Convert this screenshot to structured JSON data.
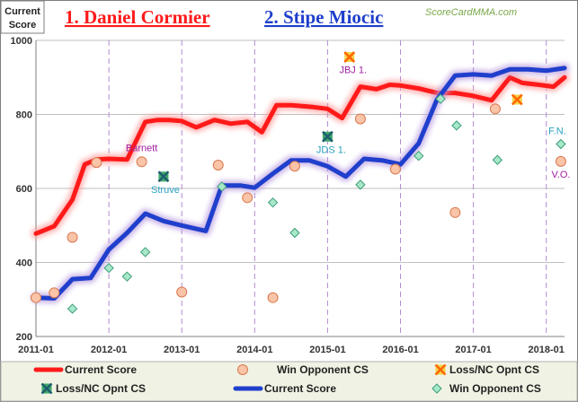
{
  "chart_data": {
    "type": "line",
    "y_corner_label": [
      "Current",
      "Score"
    ],
    "watermark": "ScoreCardMMA.com",
    "fighters": [
      {
        "title": "1. Daniel Cormier",
        "color": "#ff1a1a"
      },
      {
        "title": "2. Stipe Miocic",
        "color": "#1f3fcc"
      }
    ],
    "x_tick_labels": [
      "2011-01",
      "2012-01",
      "2013-01",
      "2014-01",
      "2015-01",
      "2016-01",
      "2017-01",
      "2018-01"
    ],
    "x_range": [
      2011.0,
      2018.25
    ],
    "ylim": [
      200,
      1000
    ],
    "y_ticks": [
      200,
      400,
      600,
      800,
      1000
    ],
    "grid": true,
    "series": [
      {
        "fighter": "1. Daniel Cormier",
        "color": "#ff1a1a",
        "x": [
          2011.0,
          2011.25,
          2011.5,
          2011.67,
          2011.83,
          2012.0,
          2012.25,
          2012.5,
          2012.67,
          2012.83,
          2013.0,
          2013.2,
          2013.45,
          2013.67,
          2013.9,
          2014.1,
          2014.3,
          2014.5,
          2014.8,
          2015.0,
          2015.2,
          2015.45,
          2015.67,
          2015.85,
          2016.0,
          2016.25,
          2016.5,
          2016.75,
          2017.0,
          2017.25,
          2017.5,
          2017.67,
          2017.9,
          2018.1,
          2018.25
        ],
        "y": [
          478,
          498,
          570,
          665,
          678,
          680,
          678,
          780,
          785,
          785,
          782,
          765,
          785,
          775,
          780,
          752,
          825,
          825,
          820,
          815,
          790,
          875,
          868,
          880,
          878,
          870,
          858,
          858,
          850,
          838,
          900,
          885,
          880,
          875,
          900
        ]
      },
      {
        "fighter": "2. Stipe Miocic",
        "color": "#1f3fcc",
        "x": [
          2011.0,
          2011.25,
          2011.5,
          2011.75,
          2012.0,
          2012.25,
          2012.5,
          2012.75,
          2013.0,
          2013.33,
          2013.55,
          2013.8,
          2014.0,
          2014.25,
          2014.5,
          2014.75,
          2015.0,
          2015.25,
          2015.5,
          2015.75,
          2016.0,
          2016.25,
          2016.5,
          2016.75,
          2017.0,
          2017.25,
          2017.5,
          2017.75,
          2018.0,
          2018.25
        ],
        "y": [
          305,
          303,
          355,
          358,
          435,
          480,
          532,
          512,
          500,
          485,
          608,
          608,
          602,
          640,
          676,
          676,
          660,
          632,
          680,
          676,
          665,
          722,
          840,
          905,
          908,
          905,
          922,
          922,
          918,
          925
        ]
      }
    ],
    "opponent_points": [
      {
        "fighter": "1. Daniel Cormier",
        "kind": "win",
        "x": 2011.0,
        "y": 305
      },
      {
        "fighter": "1. Daniel Cormier",
        "kind": "win",
        "x": 2011.25,
        "y": 318
      },
      {
        "fighter": "1. Daniel Cormier",
        "kind": "win",
        "x": 2011.5,
        "y": 468
      },
      {
        "fighter": "1. Daniel Cormier",
        "kind": "win",
        "x": 2011.83,
        "y": 670
      },
      {
        "fighter": "1. Daniel Cormier",
        "kind": "win",
        "x": 2012.45,
        "y": 672,
        "label": "Barnett"
      },
      {
        "fighter": "1. Daniel Cormier",
        "kind": "win",
        "x": 2013.0,
        "y": 320
      },
      {
        "fighter": "1. Daniel Cormier",
        "kind": "win",
        "x": 2013.5,
        "y": 663
      },
      {
        "fighter": "1. Daniel Cormier",
        "kind": "win",
        "x": 2013.9,
        "y": 575
      },
      {
        "fighter": "1. Daniel Cormier",
        "kind": "win",
        "x": 2014.25,
        "y": 305
      },
      {
        "fighter": "1. Daniel Cormier",
        "kind": "win",
        "x": 2014.55,
        "y": 660
      },
      {
        "fighter": "1. Daniel Cormier",
        "kind": "win",
        "x": 2015.45,
        "y": 788
      },
      {
        "fighter": "1. Daniel Cormier",
        "kind": "win",
        "x": 2015.93,
        "y": 652
      },
      {
        "fighter": "1. Daniel Cormier",
        "kind": "win",
        "x": 2016.75,
        "y": 535
      },
      {
        "fighter": "1. Daniel Cormier",
        "kind": "win",
        "x": 2017.3,
        "y": 815
      },
      {
        "fighter": "1. Daniel Cormier",
        "kind": "win",
        "x": 2018.2,
        "y": 673,
        "label": "V.O."
      },
      {
        "fighter": "1. Daniel Cormier",
        "kind": "loss",
        "x": 2015.3,
        "y": 955,
        "label": "JBJ 1."
      },
      {
        "fighter": "1. Daniel Cormier",
        "kind": "loss",
        "x": 2017.6,
        "y": 840
      },
      {
        "fighter": "2. Stipe Miocic",
        "kind": "loss",
        "x": 2012.75,
        "y": 632,
        "label": "Struve"
      },
      {
        "fighter": "2. Stipe Miocic",
        "kind": "loss",
        "x": 2015.0,
        "y": 740,
        "label": "JDS 1."
      },
      {
        "fighter": "2. Stipe Miocic",
        "kind": "win",
        "x": 2011.5,
        "y": 275
      },
      {
        "fighter": "2. Stipe Miocic",
        "kind": "win",
        "x": 2012.0,
        "y": 385
      },
      {
        "fighter": "2. Stipe Miocic",
        "kind": "win",
        "x": 2012.25,
        "y": 362
      },
      {
        "fighter": "2. Stipe Miocic",
        "kind": "win",
        "x": 2012.5,
        "y": 428
      },
      {
        "fighter": "2. Stipe Miocic",
        "kind": "win",
        "x": 2013.55,
        "y": 605
      },
      {
        "fighter": "2. Stipe Miocic",
        "kind": "win",
        "x": 2014.25,
        "y": 562
      },
      {
        "fighter": "2. Stipe Miocic",
        "kind": "win",
        "x": 2014.55,
        "y": 480
      },
      {
        "fighter": "2. Stipe Miocic",
        "kind": "win",
        "x": 2015.45,
        "y": 610
      },
      {
        "fighter": "2. Stipe Miocic",
        "kind": "win",
        "x": 2016.25,
        "y": 688
      },
      {
        "fighter": "2. Stipe Miocic",
        "kind": "win",
        "x": 2016.55,
        "y": 842
      },
      {
        "fighter": "2. Stipe Miocic",
        "kind": "win",
        "x": 2016.77,
        "y": 770
      },
      {
        "fighter": "2. Stipe Miocic",
        "kind": "win",
        "x": 2017.33,
        "y": 677
      },
      {
        "fighter": "2. Stipe Miocic",
        "kind": "win",
        "x": 2018.2,
        "y": 720,
        "label": "F.N."
      }
    ],
    "legend": {
      "placement": "bottom",
      "rows": [
        [
          {
            "symbol": "line",
            "color": "#ff1a1a",
            "label": "Current Score"
          },
          {
            "symbol": "circle-orange",
            "label": "Win Opponent CS"
          },
          {
            "symbol": "x-orange",
            "label": "Loss/NC Opnt CS"
          }
        ],
        [
          {
            "symbol": "x-green",
            "label": "Loss/NC Opnt CS"
          },
          {
            "symbol": "line",
            "color": "#1f3fcc",
            "label": "Current Score"
          },
          {
            "symbol": "diamond-teal",
            "label": "Win Opponent CS"
          }
        ]
      ]
    },
    "colors": {
      "plot_bg": "#ffffff",
      "grid_h": "#bfbfbf",
      "grid_v": "#b48ad0",
      "legend_bg": "#f0f3e4",
      "cormier_label": "#a020a0",
      "miocic_label": "#2aa0c0",
      "watermark": "#7aa84a",
      "win_circle_fill": "#f9c4a8",
      "win_circle_stroke": "#d9784f",
      "loss_x_orange": "#ff6600",
      "loss_x_orange_fill": "#f3d34a",
      "loss_x_green": "#1e5e6e",
      "loss_x_green_fill": "#3fa86a",
      "win_diamond_fill": "#a6e8c8",
      "win_diamond_stroke": "#3d9c7a"
    }
  }
}
